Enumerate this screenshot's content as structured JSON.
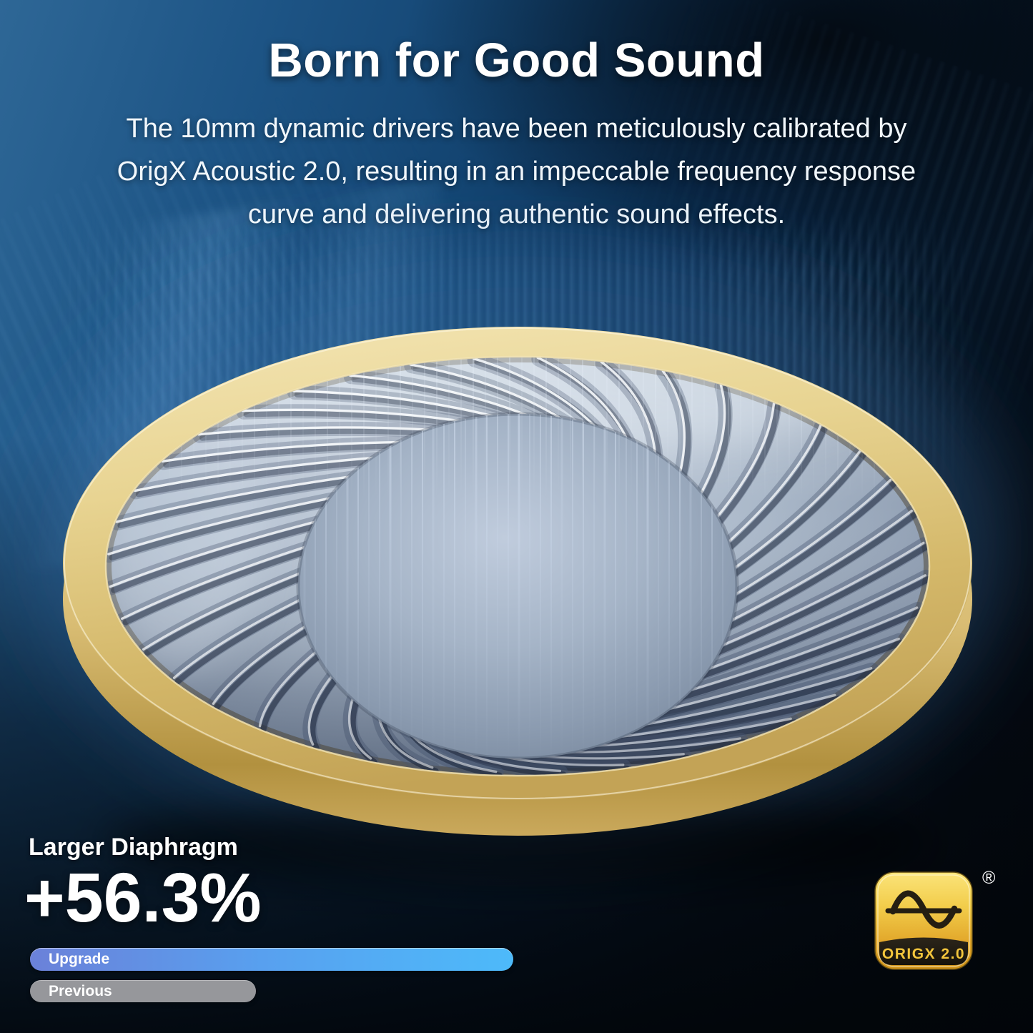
{
  "page": {
    "title": "Born for Good Sound",
    "description_lines": [
      "The 10mm dynamic drivers have been meticulously calibrated by",
      "OrigX Acoustic 2.0, resulting in an impeccable frequency response",
      "curve and delivering authentic sound effects."
    ]
  },
  "highlight": {
    "label": "Larger Diaphragm",
    "value": "+56.3%"
  },
  "comparison": {
    "bars": [
      {
        "label": "Upgrade",
        "relative_width_pct": 100,
        "color_start": "#6b81d9",
        "color_end": "#4dbafa"
      },
      {
        "label": "Previous",
        "relative_width_pct": 47,
        "color": "#96979b"
      }
    ]
  },
  "badge": {
    "text": "ORIGX 2.0",
    "registered_mark": "®",
    "icon": "sine-wave-icon"
  },
  "colors": {
    "background_blue": "#1d5485",
    "background_dark": "#03070d",
    "gold_rim": "#d9bf78",
    "accent_bar_blue": "#4dbafa",
    "bar_gray": "#96979b",
    "badge_gold": "#eebc33",
    "text_white": "#ffffff"
  }
}
